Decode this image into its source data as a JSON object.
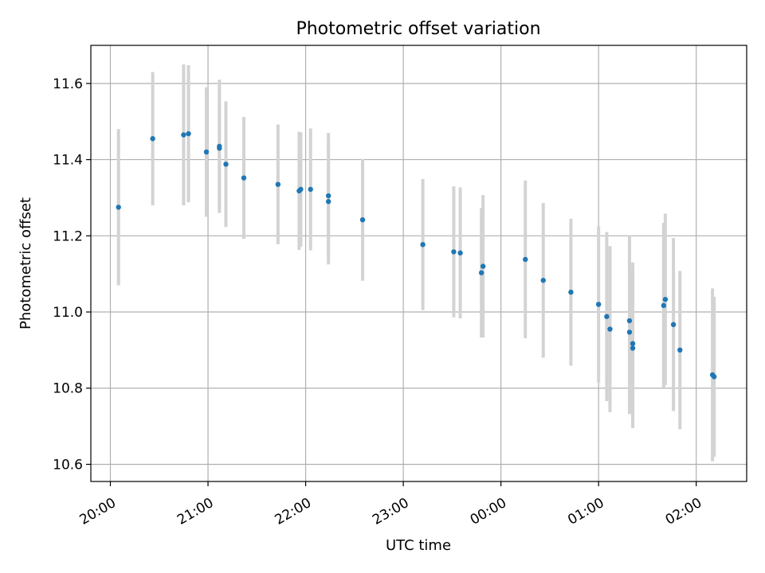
{
  "chart_data": {
    "type": "scatter",
    "title": "Photometric offset variation",
    "xlabel": "UTC time",
    "ylabel": "Photometric offset",
    "x_axis": "time",
    "xlim": [
      "19:48",
      "02:31"
    ],
    "ylim": [
      10.555,
      11.7
    ],
    "grid": true,
    "point_color": "#1f77b4",
    "errorbar_color": "#d3d3d3",
    "x_ticks": [
      "20:00",
      "21:00",
      "22:00",
      "23:00",
      "00:00",
      "01:00",
      "02:00"
    ],
    "y_ticks": [
      "10.6",
      "10.8",
      "11.0",
      "11.2",
      "11.4",
      "11.6"
    ],
    "points": [
      {
        "x": "20:05",
        "y": 11.275,
        "err": 0.205
      },
      {
        "x": "20:26",
        "y": 11.455,
        "err": 0.175
      },
      {
        "x": "20:45",
        "y": 11.465,
        "err": 0.185
      },
      {
        "x": "20:48",
        "y": 11.468,
        "err": 0.18
      },
      {
        "x": "20:59",
        "y": 11.42,
        "err": 0.17
      },
      {
        "x": "21:07",
        "y": 11.435,
        "err": 0.175
      },
      {
        "x": "21:07",
        "y": 11.43,
        "err": 0.16
      },
      {
        "x": "21:11",
        "y": 11.388,
        "err": 0.165
      },
      {
        "x": "21:22",
        "y": 11.352,
        "err": 0.16
      },
      {
        "x": "21:43",
        "y": 11.335,
        "err": 0.157
      },
      {
        "x": "21:56",
        "y": 11.318,
        "err": 0.155
      },
      {
        "x": "21:57",
        "y": 11.322,
        "err": 0.15
      },
      {
        "x": "22:03",
        "y": 11.322,
        "err": 0.16
      },
      {
        "x": "22:14",
        "y": 11.305,
        "err": 0.165
      },
      {
        "x": "22:14",
        "y": 11.29,
        "err": 0.165
      },
      {
        "x": "22:35",
        "y": 11.242,
        "err": 0.16
      },
      {
        "x": "23:12",
        "y": 11.177,
        "err": 0.172
      },
      {
        "x": "23:31",
        "y": 11.158,
        "err": 0.172
      },
      {
        "x": "23:35",
        "y": 11.155,
        "err": 0.172
      },
      {
        "x": "23:48",
        "y": 11.103,
        "err": 0.17
      },
      {
        "x": "23:49",
        "y": 11.12,
        "err": 0.187
      },
      {
        "x": "00:15",
        "y": 11.138,
        "err": 0.207
      },
      {
        "x": "00:26",
        "y": 11.083,
        "err": 0.203
      },
      {
        "x": "00:43",
        "y": 11.052,
        "err": 0.193
      },
      {
        "x": "01:00",
        "y": 11.02,
        "err": 0.205
      },
      {
        "x": "01:05",
        "y": 10.988,
        "err": 0.222
      },
      {
        "x": "01:07",
        "y": 10.955,
        "err": 0.218
      },
      {
        "x": "01:19",
        "y": 10.977,
        "err": 0.223
      },
      {
        "x": "01:19",
        "y": 10.947,
        "err": 0.215
      },
      {
        "x": "01:21",
        "y": 10.905,
        "err": 0.21
      },
      {
        "x": "01:21",
        "y": 10.917,
        "err": 0.213
      },
      {
        "x": "01:40",
        "y": 11.017,
        "err": 0.217
      },
      {
        "x": "01:41",
        "y": 11.033,
        "err": 0.225
      },
      {
        "x": "01:46",
        "y": 10.967,
        "err": 0.227
      },
      {
        "x": "01:50",
        "y": 10.9,
        "err": 0.208
      },
      {
        "x": "02:10",
        "y": 10.835,
        "err": 0.227
      },
      {
        "x": "02:11",
        "y": 10.83,
        "err": 0.21
      }
    ]
  }
}
